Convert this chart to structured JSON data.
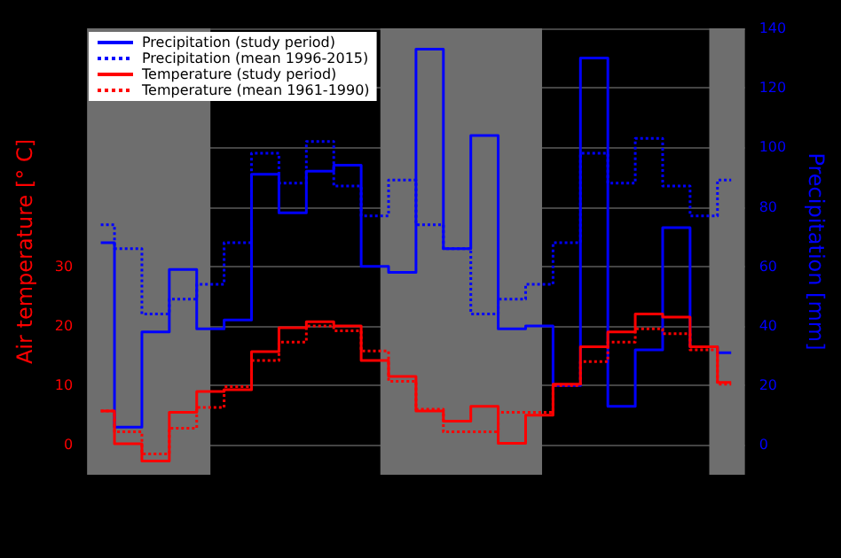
{
  "chart_data": {
    "type": "step",
    "ylabel": "Air temperature [° C]",
    "y2label": "Precipitation [mm]",
    "categories": [
      null,
      null,
      null,
      null,
      null,
      null,
      null,
      null,
      null,
      null,
      null,
      null,
      null,
      null,
      null,
      null,
      null,
      null,
      null,
      null,
      null,
      null,
      null,
      null
    ],
    "ylim": [
      -5,
      70
    ],
    "yticks": [
      0,
      10,
      20,
      30
    ],
    "y2lim": [
      -10,
      140
    ],
    "y2ticks": [
      0,
      20,
      40,
      60,
      80,
      100,
      120,
      140
    ],
    "tick_labels": "y",
    "grid": "y",
    "legend": "top left",
    "series": [
      {
        "name": "Precipitation (study period)",
        "color": "#0000ff",
        "axis": "y2",
        "line_style": "solid",
        "values": [
          68,
          6,
          38,
          59,
          39,
          42,
          91,
          78,
          92,
          94,
          60,
          58,
          133,
          66,
          104,
          39,
          40,
          20,
          130,
          13,
          32,
          73,
          33,
          31
        ]
      },
      {
        "name": "Precipitation (mean 1996-2015)",
        "color": "#0000ff",
        "axis": "y2",
        "line_style": "dotted",
        "values": [
          74,
          66,
          44,
          49,
          54,
          68,
          98,
          88,
          102,
          87,
          77,
          89,
          74,
          66,
          44,
          49,
          54,
          68,
          98,
          88,
          103,
          87,
          77,
          89
        ]
      },
      {
        "name": "Temperature (study period)",
        "color": "#ff0000",
        "line_style": "solid",
        "values": [
          5.7,
          0.2,
          -2.7,
          5.5,
          9,
          9.3,
          15.7,
          19.7,
          20.7,
          20,
          14.2,
          11.5,
          5.7,
          4,
          6.5,
          0.3,
          5,
          10.2,
          16.5,
          19,
          22,
          21.5,
          16.5,
          10.5
        ]
      },
      {
        "name": "Temperature (mean 1961-1990)",
        "color": "#ff0000",
        "line_style": "dotted",
        "values": [
          5.7,
          2.2,
          -1.5,
          2.8,
          6.3,
          9.8,
          14.2,
          17.3,
          20,
          19.2,
          15.8,
          10.7,
          6,
          2.2,
          2.2,
          5.5,
          5.5,
          10,
          14,
          17.3,
          19.5,
          18.7,
          16,
          10.2
        ]
      }
    ]
  }
}
